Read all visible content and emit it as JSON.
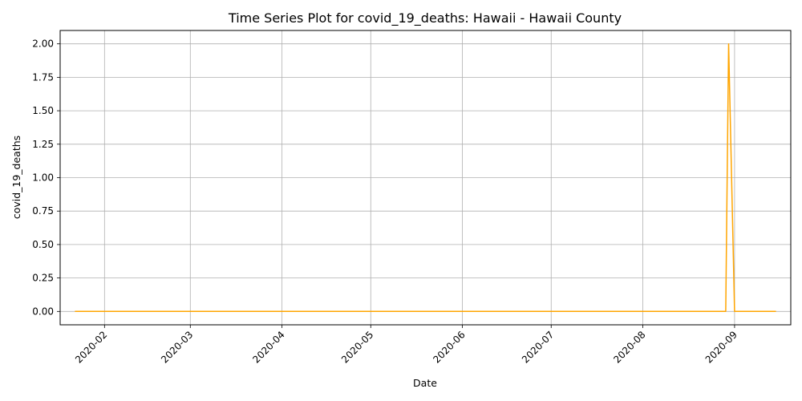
{
  "chart_data": {
    "type": "line",
    "title": "Time Series Plot for covid_19_deaths: Hawaii - Hawaii County",
    "xlabel": "Date",
    "ylabel": "covid_19_deaths",
    "x_ticks": [
      "2020-02",
      "2020-03",
      "2020-04",
      "2020-05",
      "2020-06",
      "2020-07",
      "2020-08",
      "2020-09"
    ],
    "y_ticks": [
      "0.00",
      "0.25",
      "0.50",
      "0.75",
      "1.00",
      "1.25",
      "1.50",
      "1.75",
      "2.00"
    ],
    "xlim": [
      "2020-01-17",
      "2020-09-20"
    ],
    "ylim": [
      -0.1,
      2.1
    ],
    "grid": true,
    "series": [
      {
        "color": "#ffa500",
        "x": [
          "2020-01-22",
          "2020-08-29",
          "2020-08-30",
          "2020-09-01",
          "2020-09-15"
        ],
        "values": [
          0,
          0,
          2,
          0,
          0
        ]
      }
    ]
  }
}
